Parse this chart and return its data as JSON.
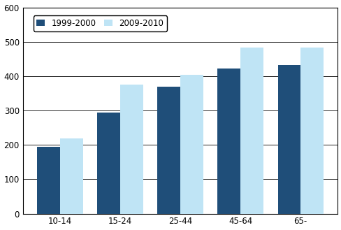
{
  "categories": [
    "10-14",
    "15-24",
    "25-44",
    "45-64",
    "65-"
  ],
  "series": {
    "1999-2000": [
      195,
      295,
      370,
      422,
      432
    ],
    "2009-2010": [
      218,
      375,
      403,
      483,
      483
    ]
  },
  "colors": {
    "1999-2000": "#1F4E79",
    "2009-2010": "#BFE4F5"
  },
  "ylim": [
    0,
    600
  ],
  "yticks": [
    0,
    100,
    200,
    300,
    400,
    500,
    600
  ],
  "bar_width": 0.38,
  "figure_bg": "#FFFFFF",
  "plot_bg": "#FFFFFF",
  "grid_color": "#000000",
  "spine_color": "#000000",
  "tick_fontsize": 8.5,
  "legend_fontsize": 8.5
}
